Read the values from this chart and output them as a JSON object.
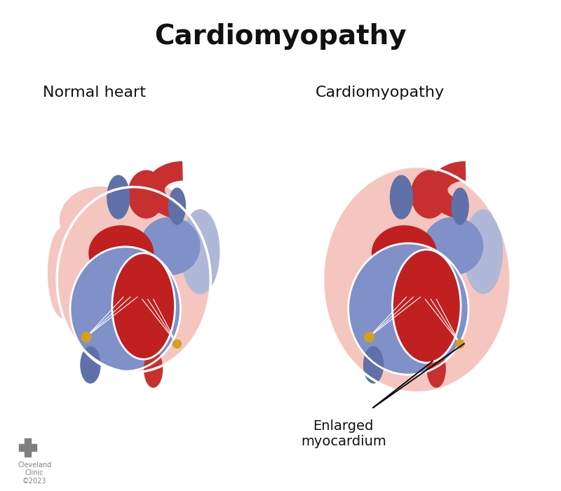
{
  "title": "Cardiomyopathy",
  "title_fontsize": 28,
  "title_fontweight": "bold",
  "label_left": "Normal heart",
  "label_right": "Cardiomyopathy",
  "label_fontsize": 16,
  "annotation_text": "Enlarged\nmyocardium",
  "annotation_fontsize": 14,
  "bg_color": "#ffffff",
  "cleveland_text": "Cleveland\nClinic\n©2023",
  "cross_color": "#808080",
  "pink_outer": "#f5c6c0",
  "blue_purple": "#8090c8",
  "red_dark": "#c02020",
  "white_col": "#ffffff",
  "blue_dark": "#6070a8",
  "gold": "#d4a020"
}
